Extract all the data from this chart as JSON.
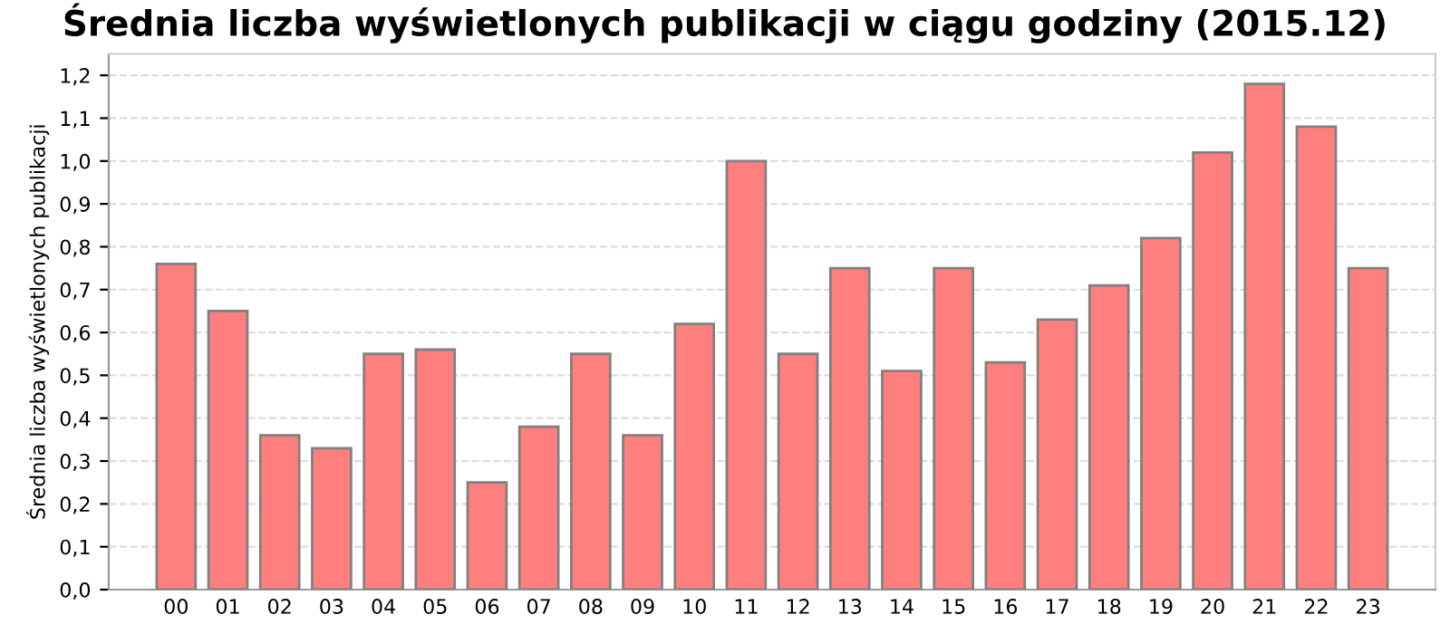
{
  "chart_data": {
    "type": "bar",
    "title": "Średnia liczba wyświetlonych publikacji w ciągu godziny (2015.12)",
    "ylabel": "Średnia liczba wyświetlonych publikacji",
    "categories": [
      "00",
      "01",
      "02",
      "03",
      "04",
      "05",
      "06",
      "07",
      "08",
      "09",
      "10",
      "11",
      "12",
      "13",
      "14",
      "15",
      "16",
      "17",
      "18",
      "19",
      "20",
      "21",
      "22",
      "23"
    ],
    "values": [
      0.76,
      0.65,
      0.36,
      0.33,
      0.55,
      0.56,
      0.25,
      0.38,
      0.55,
      0.36,
      0.62,
      1.0,
      0.55,
      0.75,
      0.51,
      0.75,
      0.53,
      0.63,
      0.71,
      0.82,
      1.02,
      1.18,
      1.08,
      0.75
    ],
    "color": "#ff7f7f",
    "ylim": [
      0,
      1.25
    ],
    "yticks": [
      {
        "value": 0,
        "label": "0,0"
      },
      {
        "value": 0.1,
        "label": "0,1"
      },
      {
        "value": 0.2,
        "label": "0,2"
      },
      {
        "value": 0.3,
        "label": "0,3"
      },
      {
        "value": 0.4,
        "label": "0,4"
      },
      {
        "value": 0.5,
        "label": "0,5"
      },
      {
        "value": 0.6,
        "label": "0,6"
      },
      {
        "value": 0.7,
        "label": "0,7"
      },
      {
        "value": 0.8,
        "label": "0,8"
      },
      {
        "value": 0.9,
        "label": "0,9"
      },
      {
        "value": 1.0,
        "label": "1,0"
      },
      {
        "value": 1.1,
        "label": "1,1"
      },
      {
        "value": 1.2,
        "label": "1,2"
      }
    ],
    "grid": "y"
  }
}
